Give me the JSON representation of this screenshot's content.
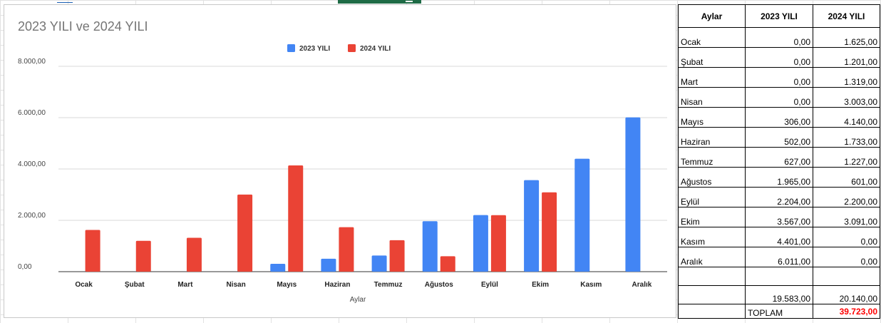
{
  "chart_data": {
    "type": "bar",
    "title": "2023 YILI  ve 2024 YILI",
    "xlabel": "Aylar",
    "ylabel": "",
    "ylim": [
      0,
      8000
    ],
    "yticks": [
      "0,00",
      "2.000,00",
      "4.000,00",
      "6.000,00",
      "8.000,00"
    ],
    "ytick_values": [
      0,
      2000,
      4000,
      6000,
      8000
    ],
    "categories": [
      "Ocak",
      "Şubat",
      "Mart",
      "Nisan",
      "Mayıs",
      "Haziran",
      "Temmuz",
      "Ağustos",
      "Eylül",
      "Ekim",
      "Kasım",
      "Aralık"
    ],
    "series": [
      {
        "name": "2023 YILI",
        "color": "#4285f4",
        "values": [
          0,
          0,
          0,
          0,
          306,
          502,
          627,
          1965,
          2204,
          3567,
          4401,
          6011
        ]
      },
      {
        "name": "2024 YILI",
        "color": "#ea4335",
        "values": [
          1625,
          1201,
          1319,
          3003,
          4140,
          1733,
          1227,
          601,
          2200,
          3091,
          0,
          0
        ]
      }
    ],
    "grid": true,
    "legend": "top-center"
  },
  "table": {
    "headers": [
      "Aylar",
      "2023 YILI",
      "2024 YILI"
    ],
    "rows": [
      [
        "Ocak",
        "0,00",
        "1.625,00"
      ],
      [
        "Şubat",
        "0,00",
        "1.201,00"
      ],
      [
        "Mart",
        "0,00",
        "1.319,00"
      ],
      [
        "Nisan",
        "0,00",
        "3.003,00"
      ],
      [
        "Mayıs",
        "306,00",
        "4.140,00"
      ],
      [
        "Haziran",
        "502,00",
        "1.733,00"
      ],
      [
        "Temmuz",
        "627,00",
        "1.227,00"
      ],
      [
        "Ağustos",
        "1.965,00",
        "601,00"
      ],
      [
        "Eylül",
        "2.204,00",
        "2.200,00"
      ],
      [
        "Ekim",
        "3.567,00",
        "3.091,00"
      ],
      [
        "Kasım",
        "4.401,00",
        "0,00"
      ],
      [
        "Aralık",
        "6.011,00",
        "0,00"
      ]
    ],
    "sum_2023": "19.583,00",
    "sum_2024": "20.140,00",
    "total_label": "TOPLAM",
    "total_value": "39.723,00",
    "total_color": "#ff0000"
  }
}
